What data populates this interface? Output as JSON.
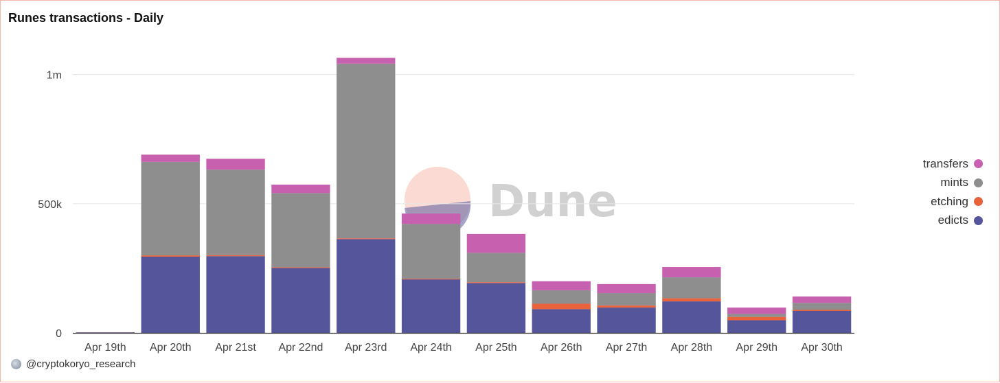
{
  "title": "Runes transactions - Daily",
  "watermark": {
    "text": "Dune",
    "icon": "dune-logo-icon"
  },
  "credit": {
    "text": "@cryptokoryo_research",
    "icon": "avatar-icon"
  },
  "colors": {
    "transfers": "#c860b0",
    "mints": "#8e8e8e",
    "etching": "#e8623c",
    "edicts": "#54559a"
  },
  "chart_data": {
    "type": "bar",
    "stacked": true,
    "title": "Runes transactions - Daily",
    "xlabel": "",
    "ylabel": "",
    "ylim": [
      0,
      1100000
    ],
    "yticks": [
      0,
      500000,
      1000000
    ],
    "ytick_labels": [
      "0",
      "500k",
      "1m"
    ],
    "grid": true,
    "legend_position": "right",
    "categories": [
      "Apr 19th",
      "Apr 20th",
      "Apr 21st",
      "Apr 22nd",
      "Apr 23rd",
      "Apr 24th",
      "Apr 25th",
      "Apr 26th",
      "Apr 27th",
      "Apr 28th",
      "Apr 29th",
      "Apr 30th"
    ],
    "series": [
      {
        "name": "edicts",
        "color": "#54559a",
        "values": [
          2000,
          295000,
          297000,
          251000,
          363000,
          207000,
          193000,
          92000,
          98000,
          122000,
          49000,
          85000
        ]
      },
      {
        "name": "etching",
        "color": "#e8623c",
        "values": [
          300,
          5000,
          4000,
          3000,
          3000,
          3000,
          3000,
          21000,
          8000,
          12000,
          13000,
          4000
        ]
      },
      {
        "name": "mints",
        "color": "#8e8e8e",
        "values": [
          200,
          362000,
          331000,
          287000,
          676000,
          212000,
          114000,
          52000,
          48000,
          81000,
          12000,
          27000
        ]
      },
      {
        "name": "transfers",
        "color": "#c860b0",
        "values": [
          200,
          28000,
          42000,
          33000,
          23000,
          40000,
          73000,
          35000,
          35000,
          40000,
          24000,
          25000
        ]
      }
    ],
    "legend_order": [
      "transfers",
      "mints",
      "etching",
      "edicts"
    ]
  }
}
